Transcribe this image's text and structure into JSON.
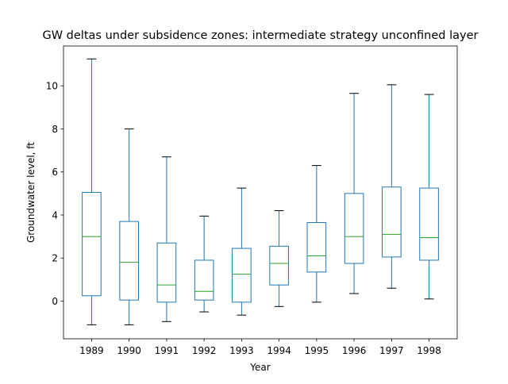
{
  "chart_data": {
    "type": "box",
    "title": "GW deltas under subsidence zones: intermediate strategy unconfined layer",
    "xlabel": "Year",
    "ylabel": "Groundwater level, ft",
    "ylim": [
      -1.75,
      11.85
    ],
    "yticks": [
      0,
      2,
      4,
      6,
      8,
      10
    ],
    "grid": false,
    "box_color": "#1f77b4",
    "median_color": "#2ca02c",
    "whisker_color": "#1f77b4",
    "cap_color": "#000000",
    "categories": [
      "1989",
      "1990",
      "1991",
      "1992",
      "1993",
      "1994",
      "1995",
      "1996",
      "1997",
      "1998"
    ],
    "boxes": [
      {
        "year": "1989",
        "whislo": -1.1,
        "q1": 0.25,
        "med": 3.0,
        "q3": 5.05,
        "whishi": 11.25
      },
      {
        "year": "1990",
        "whislo": -1.1,
        "q1": 0.05,
        "med": 1.8,
        "q3": 3.7,
        "whishi": 8.0
      },
      {
        "year": "1991",
        "whislo": -0.95,
        "q1": -0.05,
        "med": 0.75,
        "q3": 2.7,
        "whishi": 6.7
      },
      {
        "year": "1992",
        "whislo": -0.5,
        "q1": 0.05,
        "med": 0.45,
        "q3": 1.9,
        "whishi": 3.95
      },
      {
        "year": "1993",
        "whislo": -0.65,
        "q1": -0.05,
        "med": 1.25,
        "q3": 2.45,
        "whishi": 5.25
      },
      {
        "year": "1994",
        "whislo": -0.25,
        "q1": 0.75,
        "med": 1.75,
        "q3": 2.55,
        "whishi": 4.2
      },
      {
        "year": "1995",
        "whislo": -0.05,
        "q1": 1.35,
        "med": 2.1,
        "q3": 3.65,
        "whishi": 6.3
      },
      {
        "year": "1996",
        "whislo": 0.35,
        "q1": 1.75,
        "med": 3.0,
        "q3": 5.0,
        "whishi": 9.65
      },
      {
        "year": "1997",
        "whislo": 0.6,
        "q1": 2.05,
        "med": 3.1,
        "q3": 5.3,
        "whishi": 10.05
      },
      {
        "year": "1998",
        "whislo": 0.1,
        "q1": 1.9,
        "med": 2.95,
        "q3": 5.25,
        "whishi": 9.6
      }
    ]
  }
}
